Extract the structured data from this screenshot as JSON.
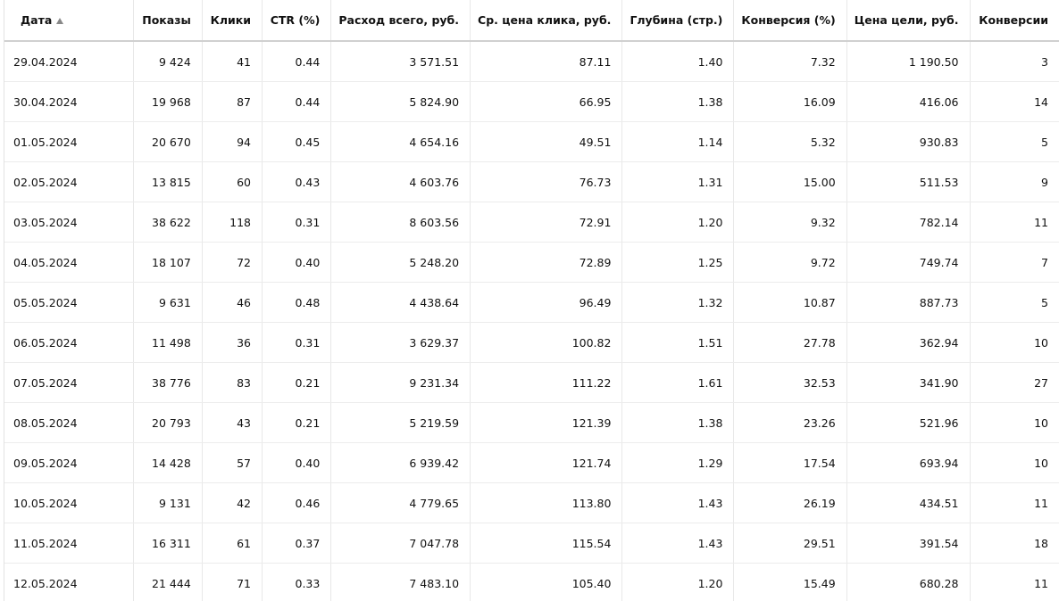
{
  "table": {
    "columns": [
      "Дата",
      "Показы",
      "Клики",
      "CTR (%)",
      "Расход всего, руб.",
      "Ср. цена клика, руб.",
      "Глубина (стр.)",
      "Конверсия (%)",
      "Цена цели, руб.",
      "Конверсии"
    ],
    "rows": [
      [
        "29.04.2024",
        "9 424",
        "41",
        "0.44",
        "3 571.51",
        "87.11",
        "1.40",
        "7.32",
        "1 190.50",
        "3"
      ],
      [
        "30.04.2024",
        "19 968",
        "87",
        "0.44",
        "5 824.90",
        "66.95",
        "1.38",
        "16.09",
        "416.06",
        "14"
      ],
      [
        "01.05.2024",
        "20 670",
        "94",
        "0.45",
        "4 654.16",
        "49.51",
        "1.14",
        "5.32",
        "930.83",
        "5"
      ],
      [
        "02.05.2024",
        "13 815",
        "60",
        "0.43",
        "4 603.76",
        "76.73",
        "1.31",
        "15.00",
        "511.53",
        "9"
      ],
      [
        "03.05.2024",
        "38 622",
        "118",
        "0.31",
        "8 603.56",
        "72.91",
        "1.20",
        "9.32",
        "782.14",
        "11"
      ],
      [
        "04.05.2024",
        "18 107",
        "72",
        "0.40",
        "5 248.20",
        "72.89",
        "1.25",
        "9.72",
        "749.74",
        "7"
      ],
      [
        "05.05.2024",
        "9 631",
        "46",
        "0.48",
        "4 438.64",
        "96.49",
        "1.32",
        "10.87",
        "887.73",
        "5"
      ],
      [
        "06.05.2024",
        "11 498",
        "36",
        "0.31",
        "3 629.37",
        "100.82",
        "1.51",
        "27.78",
        "362.94",
        "10"
      ],
      [
        "07.05.2024",
        "38 776",
        "83",
        "0.21",
        "9 231.34",
        "111.22",
        "1.61",
        "32.53",
        "341.90",
        "27"
      ],
      [
        "08.05.2024",
        "20 793",
        "43",
        "0.21",
        "5 219.59",
        "121.39",
        "1.38",
        "23.26",
        "521.96",
        "10"
      ],
      [
        "09.05.2024",
        "14 428",
        "57",
        "0.40",
        "6 939.42",
        "121.74",
        "1.29",
        "17.54",
        "693.94",
        "10"
      ],
      [
        "10.05.2024",
        "9 131",
        "42",
        "0.46",
        "4 779.65",
        "113.80",
        "1.43",
        "26.19",
        "434.51",
        "11"
      ],
      [
        "11.05.2024",
        "16 311",
        "61",
        "0.37",
        "7 047.78",
        "115.54",
        "1.43",
        "29.51",
        "391.54",
        "18"
      ],
      [
        "12.05.2024",
        "21 444",
        "71",
        "0.33",
        "7 483.10",
        "105.40",
        "1.20",
        "15.49",
        "680.28",
        "11"
      ]
    ]
  }
}
